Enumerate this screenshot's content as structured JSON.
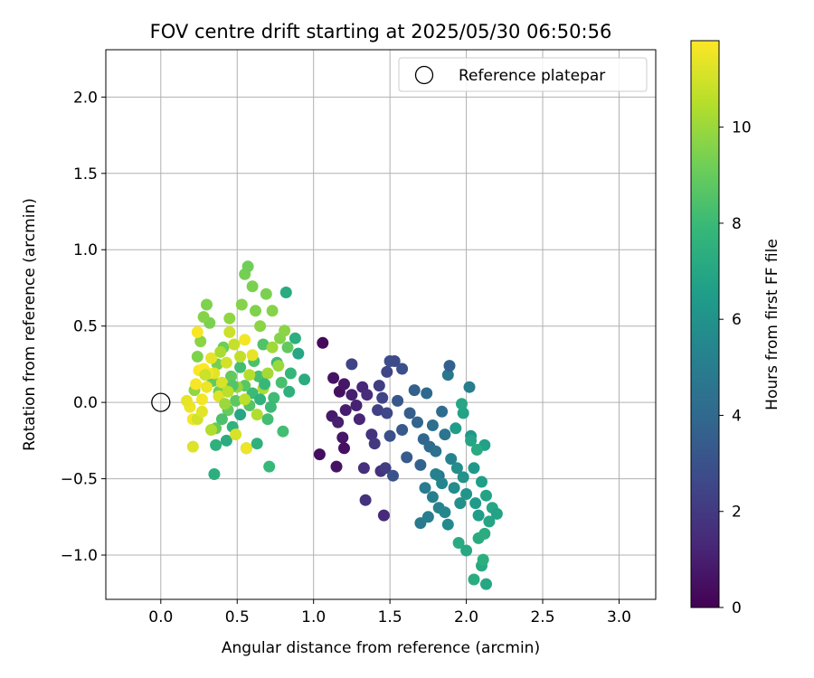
{
  "chart_data": {
    "type": "scatter",
    "title": "FOV centre drift starting at 2025/05/30 06:50:56",
    "xlabel": "Angular distance from reference (arcmin)",
    "ylabel": "Rotation from reference (arcmin)",
    "xlim": [
      -0.36,
      3.24
    ],
    "ylim": [
      -1.29,
      2.31
    ],
    "xticks": [
      "0.0",
      "0.5",
      "1.0",
      "1.5",
      "2.0",
      "2.5",
      "3.0"
    ],
    "xtick_values": [
      0,
      0.5,
      1,
      1.5,
      2,
      2.5,
      3
    ],
    "yticks": [
      "−1.0",
      "−0.5",
      "0.0",
      "0.5",
      "1.0",
      "1.5",
      "2.0"
    ],
    "ytick_values": [
      -1,
      -0.5,
      0,
      0.5,
      1,
      1.5,
      2
    ],
    "grid": true,
    "legend": {
      "position": "top-right",
      "entries": [
        "Reference platepar"
      ]
    },
    "reference_point": {
      "label": "Reference platepar",
      "x": 0,
      "y": 0
    },
    "colorbar": {
      "label": "Hours from first FF file",
      "colormap": "viridis",
      "range": [
        0,
        11.8
      ],
      "ticks": [
        "0",
        "2",
        "4",
        "6",
        "8",
        "10"
      ],
      "tick_values": [
        0,
        2,
        4,
        6,
        8,
        10
      ],
      "colors": [
        "#440154",
        "#482878",
        "#3e4989",
        "#31688e",
        "#26828e",
        "#1f9e89",
        "#35b779",
        "#6ece58",
        "#b5de2b",
        "#fde725"
      ]
    },
    "points": [
      [
        1.06,
        0.39,
        0.3
      ],
      [
        1.04,
        -0.34,
        0.4
      ],
      [
        1.15,
        -0.42,
        0.6
      ],
      [
        1.19,
        -0.23,
        0.7
      ],
      [
        1.2,
        -0.3,
        0.5
      ],
      [
        1.12,
        -0.09,
        0.8
      ],
      [
        1.16,
        -0.13,
        1.0
      ],
      [
        1.21,
        -0.05,
        0.9
      ],
      [
        1.13,
        0.16,
        0.6
      ],
      [
        1.17,
        0.07,
        0.5
      ],
      [
        1.2,
        0.12,
        0.7
      ],
      [
        1.25,
        0.05,
        1.0
      ],
      [
        1.28,
        -0.02,
        1.1
      ],
      [
        1.3,
        -0.11,
        1.2
      ],
      [
        1.32,
        0.1,
        1.3
      ],
      [
        1.35,
        0.05,
        1.5
      ],
      [
        1.33,
        -0.43,
        1.6
      ],
      [
        1.34,
        -0.64,
        1.7
      ],
      [
        1.38,
        -0.21,
        1.8
      ],
      [
        1.4,
        -0.27,
        2.0
      ],
      [
        1.44,
        -0.45,
        1.7
      ],
      [
        1.46,
        -0.74,
        1.4
      ],
      [
        1.47,
        -0.43,
        2.1
      ],
      [
        1.25,
        0.25,
        2.4
      ],
      [
        1.43,
        0.11,
        2.2
      ],
      [
        1.48,
        0.2,
        2.5
      ],
      [
        1.5,
        0.27,
        2.8
      ],
      [
        1.53,
        0.27,
        2.7
      ],
      [
        1.58,
        0.22,
        2.9
      ],
      [
        1.42,
        -0.05,
        2.3
      ],
      [
        1.45,
        0.03,
        2.4
      ],
      [
        1.48,
        -0.07,
        2.6
      ],
      [
        1.5,
        -0.22,
        2.9
      ],
      [
        1.52,
        -0.48,
        3.0
      ],
      [
        1.55,
        0.01,
        3.2
      ],
      [
        1.58,
        -0.18,
        3.3
      ],
      [
        1.61,
        -0.36,
        3.4
      ],
      [
        1.63,
        -0.07,
        3.5
      ],
      [
        1.66,
        0.08,
        3.6
      ],
      [
        1.68,
        -0.13,
        3.8
      ],
      [
        1.7,
        -0.41,
        3.7
      ],
      [
        1.72,
        -0.24,
        3.9
      ],
      [
        1.74,
        0.06,
        4.0
      ],
      [
        1.76,
        -0.29,
        4.1
      ],
      [
        1.78,
        -0.15,
        4.3
      ],
      [
        1.8,
        -0.32,
        4.4
      ],
      [
        1.82,
        -0.48,
        4.5
      ],
      [
        1.84,
        -0.06,
        4.2
      ],
      [
        1.86,
        -0.21,
        4.6
      ],
      [
        1.88,
        0.18,
        4.7
      ],
      [
        1.89,
        0.24,
        3.6
      ],
      [
        1.7,
        -0.79,
        4.8
      ],
      [
        1.73,
        -0.56,
        4.9
      ],
      [
        1.75,
        -0.75,
        5.0
      ],
      [
        1.78,
        -0.62,
        5.1
      ],
      [
        1.8,
        -0.47,
        5.2
      ],
      [
        1.82,
        -0.69,
        5.3
      ],
      [
        1.84,
        -0.53,
        5.4
      ],
      [
        1.86,
        -0.72,
        5.5
      ],
      [
        1.88,
        -0.8,
        5.6
      ],
      [
        1.9,
        -0.37,
        5.3
      ],
      [
        1.92,
        -0.56,
        5.7
      ],
      [
        1.94,
        -0.43,
        5.8
      ],
      [
        1.96,
        -0.66,
        5.9
      ],
      [
        1.98,
        -0.49,
        6.0
      ],
      [
        2.0,
        -0.6,
        6.1
      ],
      [
        2.02,
        0.1,
        5.0
      ],
      [
        2.03,
        -0.22,
        6.2
      ],
      [
        2.05,
        -0.43,
        6.3
      ],
      [
        2.06,
        -0.66,
        6.4
      ],
      [
        2.08,
        -0.74,
        6.5
      ],
      [
        2.1,
        -0.52,
        6.6
      ],
      [
        2.12,
        -0.28,
        6.7
      ],
      [
        2.13,
        -0.61,
        6.8
      ],
      [
        2.15,
        -0.78,
        6.9
      ],
      [
        2.17,
        -0.69,
        7.0
      ],
      [
        2.2,
        -0.73,
        6.8
      ],
      [
        2.0,
        -0.97,
        7.1
      ],
      [
        1.95,
        -0.92,
        7.2
      ],
      [
        2.05,
        -1.16,
        7.3
      ],
      [
        2.1,
        -1.07,
        7.1
      ],
      [
        2.13,
        -1.19,
        7.0
      ],
      [
        2.11,
        -1.03,
        7.4
      ],
      [
        2.08,
        -0.89,
        7.2
      ],
      [
        2.12,
        -0.86,
        7.3
      ],
      [
        1.93,
        -0.17,
        6.5
      ],
      [
        1.98,
        -0.07,
        6.8
      ],
      [
        1.97,
        -0.01,
        7.0
      ],
      [
        2.03,
        -0.25,
        6.9
      ],
      [
        2.07,
        -0.31,
        7.2
      ],
      [
        0.35,
        -0.47,
        7.4
      ],
      [
        0.36,
        -0.28,
        7.5
      ],
      [
        0.43,
        -0.25,
        7.3
      ],
      [
        0.47,
        -0.16,
        7.6
      ],
      [
        0.52,
        -0.08,
        7.0
      ],
      [
        0.56,
        -0.3,
        7.8
      ],
      [
        0.63,
        -0.27,
        7.5
      ],
      [
        0.71,
        -0.42,
        7.9
      ],
      [
        0.8,
        -0.19,
        8.2
      ],
      [
        0.82,
        0.72,
        7.2
      ],
      [
        0.84,
        0.07,
        7.5
      ],
      [
        0.88,
        0.42,
        7.4
      ],
      [
        0.9,
        0.32,
        7.0
      ],
      [
        0.94,
        0.15,
        7.3
      ],
      [
        0.85,
        0.19,
        7.8
      ],
      [
        0.76,
        0.26,
        8.0
      ],
      [
        0.79,
        0.13,
        8.3
      ],
      [
        0.74,
        0.03,
        8.1
      ],
      [
        0.7,
        -0.11,
        8.2
      ],
      [
        0.67,
        0.38,
        8.5
      ],
      [
        0.61,
        0.27,
        8.4
      ],
      [
        0.64,
        0.17,
        8.3
      ],
      [
        0.6,
        0.06,
        8.0
      ],
      [
        0.58,
        -0.02,
        8.6
      ],
      [
        0.55,
        0.11,
        8.7
      ],
      [
        0.52,
        0.23,
        8.2
      ],
      [
        0.49,
        0.01,
        8.8
      ],
      [
        0.46,
        0.17,
        8.9
      ],
      [
        0.44,
        -0.05,
        9.0
      ],
      [
        0.41,
        0.36,
        9.1
      ],
      [
        0.4,
        -0.11,
        8.4
      ],
      [
        0.38,
        0.07,
        9.2
      ],
      [
        0.37,
        0.25,
        9.3
      ],
      [
        0.34,
        0.14,
        8.9
      ],
      [
        0.32,
        0.52,
        9.4
      ],
      [
        0.3,
        0.64,
        9.5
      ],
      [
        0.28,
        0.56,
        9.6
      ],
      [
        0.26,
        0.4,
        9.7
      ],
      [
        0.24,
        0.3,
        9.5
      ],
      [
        0.22,
        0.08,
        9.8
      ],
      [
        0.55,
        0.84,
        9.3
      ],
      [
        0.57,
        0.89,
        9.2
      ],
      [
        0.6,
        0.76,
        9.4
      ],
      [
        0.62,
        0.6,
        9.5
      ],
      [
        0.65,
        0.5,
        9.7
      ],
      [
        0.69,
        0.71,
        9.4
      ],
      [
        0.73,
        0.6,
        9.6
      ],
      [
        0.78,
        0.42,
        9.6
      ],
      [
        0.81,
        0.47,
        9.7
      ],
      [
        0.83,
        0.36,
        8.9
      ],
      [
        0.77,
        0.24,
        10.0
      ],
      [
        0.73,
        0.36,
        10.1
      ],
      [
        0.7,
        0.19,
        10.2
      ],
      [
        0.67,
        0.09,
        10.3
      ],
      [
        0.63,
        -0.08,
        10.4
      ],
      [
        0.58,
        0.18,
        10.5
      ],
      [
        0.55,
        0.02,
        10.6
      ],
      [
        0.52,
        0.3,
        10.7
      ],
      [
        0.48,
        0.38,
        10.8
      ],
      [
        0.45,
        0.46,
        10.9
      ],
      [
        0.43,
        0.26,
        11.0
      ],
      [
        0.4,
        0.13,
        11.1
      ],
      [
        0.38,
        0.04,
        11.2
      ],
      [
        0.35,
        0.19,
        11.3
      ],
      [
        0.33,
        0.29,
        11.4
      ],
      [
        0.3,
        0.1,
        11.5
      ],
      [
        0.27,
        0.02,
        11.6
      ],
      [
        0.25,
        0.21,
        11.7
      ],
      [
        0.23,
        0.12,
        11.7
      ],
      [
        0.21,
        -0.11,
        11.6
      ],
      [
        0.19,
        -0.03,
        11.5
      ],
      [
        0.17,
        0.01,
        11.4
      ],
      [
        0.21,
        -0.29,
        11.2
      ],
      [
        0.24,
        -0.11,
        11.0
      ],
      [
        0.27,
        -0.06,
        11.3
      ],
      [
        0.56,
        -0.3,
        11.5
      ],
      [
        0.49,
        -0.21,
        11.1
      ],
      [
        0.55,
        0.41,
        11.6
      ],
      [
        0.6,
        0.31,
        11.4
      ],
      [
        0.24,
        0.46,
        11.7
      ],
      [
        0.5,
        0.1,
        9.9
      ],
      [
        0.45,
        0.55,
        9.8
      ],
      [
        0.53,
        0.64,
        9.6
      ],
      [
        0.47,
        0.11,
        8.6
      ],
      [
        0.36,
        -0.17,
        9.0
      ],
      [
        0.65,
        0.02,
        7.6
      ],
      [
        0.68,
        0.12,
        7.9
      ],
      [
        0.72,
        -0.03,
        8.0
      ],
      [
        0.39,
        0.33,
        10.3
      ],
      [
        0.33,
        -0.18,
        10.4
      ],
      [
        0.28,
        0.22,
        11.8
      ],
      [
        0.31,
        0.19,
        11.6
      ],
      [
        0.42,
        -0.01,
        10.0
      ],
      [
        0.44,
        0.07,
        10.6
      ],
      [
        0.29,
        0.18,
        10.9
      ]
    ]
  }
}
